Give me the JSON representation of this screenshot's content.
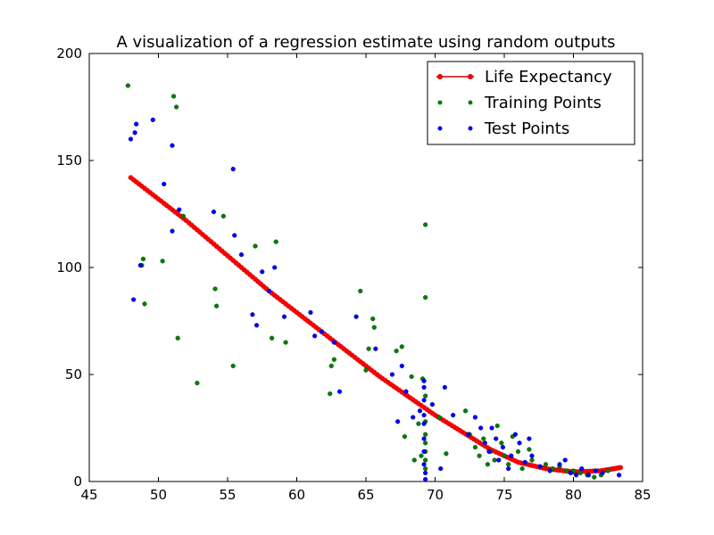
{
  "chart_data": {
    "type": "scatter",
    "title": "A visualization of a regression estimate using random outputs",
    "xlabel": "",
    "ylabel": "",
    "xlim": [
      45,
      85
    ],
    "ylim": [
      0,
      200
    ],
    "xticks": [
      45,
      50,
      55,
      60,
      65,
      70,
      75,
      80,
      85
    ],
    "yticks": [
      0,
      50,
      100,
      150,
      200
    ],
    "grid": false,
    "legend_position": "top-right",
    "colors": {
      "life": "#ff0000",
      "life_line": "#cc0000",
      "training": "#007f00",
      "test": "#0000ff"
    },
    "series": [
      {
        "name": "Life Expectancy",
        "kind": "line-with-markers",
        "x": [
          48,
          50,
          52,
          54,
          56,
          58,
          60,
          62,
          64,
          66,
          68,
          70,
          72,
          74,
          76,
          78,
          80,
          82,
          83.4
        ],
        "y": [
          142,
          132,
          122,
          111,
          100,
          89,
          79,
          69,
          59,
          49,
          40,
          31,
          23,
          15,
          9,
          6,
          4.5,
          5,
          6.5
        ]
      },
      {
        "name": "Training Points",
        "kind": "points",
        "x": [
          47.8,
          48.9,
          48.8,
          49.0,
          50.3,
          51.1,
          51.3,
          51.4,
          51.8,
          52.8,
          54.1,
          54.2,
          54.7,
          55.4,
          57.0,
          58.2,
          58.5,
          59.2,
          62.4,
          62.5,
          62.7,
          64.6,
          65.0,
          65.2,
          65.5,
          65.6,
          67.2,
          67.6,
          67.8,
          68.3,
          68.5,
          68.8,
          69.0,
          69.1,
          69.3,
          69.3,
          69.3,
          69.3,
          69.3,
          69.3,
          69.3,
          69.3,
          69.3,
          70.3,
          70.8,
          72.2,
          72.5,
          72.9,
          73.2,
          73.5,
          73.8,
          74.0,
          74.3,
          74.5,
          74.8,
          75.0,
          75.3,
          75.6,
          76.0,
          76.3,
          76.8,
          77.0,
          78.0,
          78.5,
          79.0,
          79.5,
          80.0,
          80.5,
          81.0,
          81.5,
          82.0,
          82.5
        ],
        "y": [
          185,
          104,
          101,
          83,
          103,
          180,
          175,
          67,
          124,
          46,
          90,
          82,
          124,
          54,
          110,
          67,
          112,
          65,
          41,
          54,
          57,
          89,
          52,
          62,
          76,
          72,
          61,
          63,
          21,
          49,
          10,
          27,
          12,
          48,
          120,
          86,
          40,
          28,
          22,
          18,
          14,
          10,
          6,
          30,
          13,
          33,
          22,
          16,
          12,
          20,
          8,
          14,
          10,
          26,
          18,
          12,
          8,
          21,
          14,
          6,
          15,
          10,
          8,
          6,
          7,
          5,
          5,
          4,
          3,
          2,
          3,
          5
        ]
      },
      {
        "name": "Test Points",
        "kind": "points",
        "x": [
          48.0,
          48.2,
          48.3,
          48.4,
          48.7,
          49.6,
          50.4,
          51.0,
          51.0,
          51.5,
          54.0,
          55.4,
          55.5,
          56.0,
          56.8,
          57.1,
          57.5,
          58.0,
          58.4,
          59.1,
          61.0,
          61.3,
          61.8,
          62.7,
          63.1,
          64.3,
          65.7,
          66.9,
          67.3,
          67.6,
          67.9,
          68.4,
          68.9,
          69.2,
          69.2,
          69.2,
          69.2,
          69.2,
          69.2,
          69.2,
          69.2,
          69.3,
          69.3,
          69.8,
          70.4,
          70.7,
          71.3,
          72.4,
          72.9,
          73.3,
          73.6,
          73.9,
          74.1,
          74.4,
          74.6,
          74.9,
          75.3,
          75.5,
          75.8,
          76.1,
          76.5,
          76.8,
          77.0,
          77.6,
          78.3,
          79.0,
          79.4,
          79.8,
          80.2,
          80.6,
          81.1,
          81.6,
          82.1,
          83.3
        ],
        "y": [
          160,
          85,
          163,
          167,
          101,
          169,
          139,
          157,
          117,
          127,
          126,
          146,
          115,
          106,
          78,
          73,
          98,
          89,
          100,
          77,
          79,
          68,
          70,
          65,
          42,
          77,
          62,
          50,
          28,
          54,
          42,
          30,
          33,
          44,
          47,
          38,
          31,
          27,
          20,
          14,
          8,
          4,
          1,
          36,
          6,
          44,
          31,
          22,
          30,
          25,
          18,
          14,
          25,
          20,
          10,
          16,
          6,
          12,
          22,
          18,
          9,
          20,
          12,
          7,
          5,
          8,
          10,
          4,
          3,
          6,
          3,
          5,
          4,
          3
        ]
      }
    ]
  }
}
